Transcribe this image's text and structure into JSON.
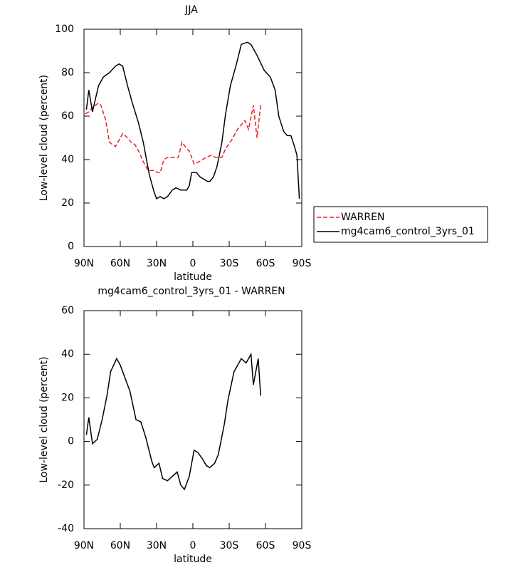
{
  "chart_data": [
    {
      "type": "line",
      "title": "JJA",
      "x_label": "latitude",
      "y_label": "Low-level cloud (percent)",
      "xlim": [
        90,
        -90
      ],
      "xticks": [
        {
          "value": 90,
          "label": "90N"
        },
        {
          "value": 60,
          "label": "60N"
        },
        {
          "value": 30,
          "label": "30N"
        },
        0,
        {
          "value": -30,
          "label": "30S"
        },
        {
          "value": -60,
          "label": "60S"
        },
        {
          "value": -90,
          "label": "90S"
        }
      ],
      "ylim": [
        0,
        100
      ],
      "yticks": [
        0,
        20,
        40,
        60,
        80,
        100
      ],
      "legend": "right",
      "series": [
        {
          "name": "WARREN",
          "color": "#e8202a",
          "dashed": true,
          "x": [
            89,
            86,
            83,
            78,
            76,
            72,
            69,
            64,
            58,
            54,
            51,
            48,
            44,
            41,
            37,
            32,
            29,
            27,
            24,
            21,
            16,
            12,
            9,
            5,
            3,
            -1,
            -5,
            -11,
            -15,
            -19,
            -24,
            -27,
            -32,
            -37,
            -43,
            -46,
            -50,
            -53,
            -56
          ],
          "values": [
            61,
            62,
            64,
            66,
            65,
            58,
            48,
            46,
            52,
            50,
            48,
            47,
            43,
            39,
            35,
            35,
            34,
            34,
            40,
            41,
            41,
            41,
            48,
            45,
            44,
            38,
            39,
            41,
            42,
            41,
            41,
            45,
            49,
            54,
            58,
            54,
            65,
            50,
            65
          ]
        },
        {
          "name": "mg4cam6_control_3yrs_01",
          "color": "#000000",
          "dashed": false,
          "x": [
            88,
            86,
            83,
            78,
            74,
            69,
            64,
            61,
            58,
            54,
            50,
            45,
            41,
            36,
            32,
            30,
            27,
            24,
            21,
            17,
            14,
            10,
            5,
            3,
            1,
            -3,
            -6,
            -12,
            -14,
            -17,
            -20,
            -24,
            -27,
            -31,
            -36,
            -40,
            -45,
            -48,
            -53,
            -59,
            -64,
            -68,
            -71,
            -75,
            -78,
            -81,
            -84,
            -86,
            -88
          ],
          "values": [
            63,
            72,
            62,
            74,
            78,
            80,
            83,
            84,
            83,
            74,
            66,
            57,
            48,
            33,
            25,
            22,
            23,
            22,
            23,
            26,
            27,
            26,
            26,
            28,
            34,
            34,
            32,
            30,
            30,
            32,
            37,
            48,
            61,
            74,
            84,
            93,
            94,
            93,
            88,
            81,
            78,
            72,
            60,
            53,
            51,
            51,
            46,
            42,
            22
          ]
        }
      ]
    },
    {
      "type": "line",
      "title": "mg4cam6_control_3yrs_01 - WARREN",
      "x_label": "latitude",
      "y_label": "Low-level cloud (percent)",
      "xlim": [
        90,
        -90
      ],
      "xticks": [
        {
          "value": 90,
          "label": "90N"
        },
        {
          "value": 60,
          "label": "60N"
        },
        {
          "value": 30,
          "label": "30N"
        },
        0,
        {
          "value": -30,
          "label": "30S"
        },
        {
          "value": -60,
          "label": "60S"
        },
        {
          "value": -90,
          "label": "90S"
        }
      ],
      "ylim": [
        -40,
        60
      ],
      "yticks": [
        -40,
        -20,
        0,
        20,
        40,
        60
      ],
      "series": [
        {
          "color": "#000000",
          "dashed": false,
          "x": [
            88,
            86,
            83,
            79,
            75,
            71,
            68,
            63,
            60,
            56,
            52,
            47,
            43,
            39,
            34,
            32,
            28,
            25,
            21,
            17,
            13,
            10,
            7,
            3,
            -1,
            -4,
            -8,
            -11,
            -14,
            -18,
            -21,
            -26,
            -29,
            -34,
            -40,
            -44,
            -48,
            -50,
            -54,
            -56
          ],
          "values": [
            3,
            11,
            -1,
            1,
            10,
            21,
            32,
            38,
            35,
            29,
            23,
            10,
            9,
            2,
            -9,
            -12,
            -10,
            -17,
            -18,
            -16,
            -14,
            -20,
            -22,
            -16,
            -4,
            -5,
            -8,
            -11,
            -12,
            -10,
            -6,
            8,
            19,
            32,
            38,
            36,
            40,
            26,
            38,
            21
          ]
        }
      ]
    }
  ]
}
